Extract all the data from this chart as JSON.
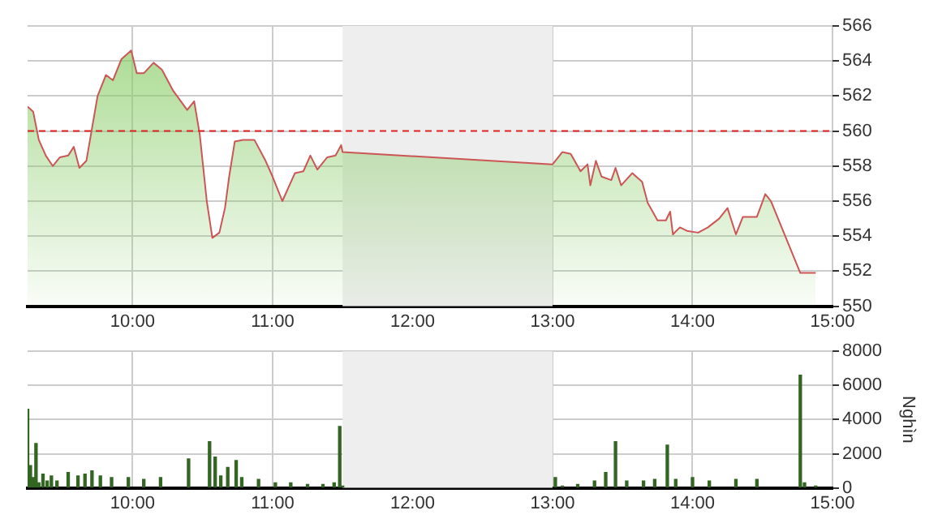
{
  "chart_data": [
    {
      "type": "area",
      "x": [
        9.25,
        9.29,
        9.33,
        9.38,
        9.43,
        9.48,
        9.54,
        9.58,
        9.62,
        9.67,
        9.75,
        9.81,
        9.86,
        9.92,
        9.99,
        10.03,
        10.08,
        10.15,
        10.21,
        10.29,
        10.39,
        10.44,
        10.48,
        10.53,
        10.57,
        10.62,
        10.66,
        10.69,
        10.73,
        10.79,
        10.87,
        10.95,
        11.0,
        11.07,
        11.16,
        11.22,
        11.27,
        11.32,
        11.39,
        11.45,
        11.49,
        11.5,
        13.0,
        13.07,
        13.13,
        13.2,
        13.25,
        13.27,
        13.31,
        13.35,
        13.42,
        13.45,
        13.49,
        13.57,
        13.64,
        13.68,
        13.75,
        13.81,
        13.84,
        13.86,
        13.91,
        13.96,
        14.04,
        14.11,
        14.19,
        14.25,
        14.31,
        14.36,
        14.46,
        14.52,
        14.56,
        14.77,
        14.88
      ],
      "series": [
        {
          "color": "#cc5555",
          "values": [
            561.4,
            561.1,
            559.5,
            558.6,
            558.0,
            558.5,
            558.6,
            559.1,
            557.9,
            558.3,
            562.0,
            563.2,
            562.9,
            564.1,
            564.6,
            563.3,
            563.3,
            563.9,
            563.5,
            562.3,
            561.2,
            561.7,
            559.8,
            556.0,
            553.9,
            554.2,
            555.6,
            557.4,
            559.4,
            559.5,
            559.5,
            558.3,
            557.4,
            556.0,
            557.6,
            557.7,
            558.6,
            557.8,
            558.5,
            558.6,
            559.2,
            558.8,
            558.1,
            558.8,
            558.7,
            557.7,
            558.1,
            556.9,
            558.3,
            557.4,
            557.2,
            557.9,
            556.9,
            557.6,
            557.1,
            555.9,
            554.9,
            554.9,
            555.4,
            554.1,
            554.5,
            554.3,
            554.2,
            554.5,
            555.0,
            555.6,
            554.1,
            555.1,
            555.1,
            556.4,
            556.0,
            551.9,
            551.9
          ]
        }
      ],
      "xlim": [
        9.25,
        15
      ],
      "xticks": [
        {
          "value": 10,
          "label": "10:00"
        },
        {
          "value": 11,
          "label": "11:00"
        },
        {
          "value": 12,
          "label": "12:00"
        },
        {
          "value": 13,
          "label": "13:00"
        },
        {
          "value": 14,
          "label": "14:00"
        },
        {
          "value": 15,
          "label": "15:00"
        }
      ],
      "ylim": [
        550,
        566
      ],
      "yticks": [
        550,
        552,
        554,
        556,
        558,
        560,
        562,
        564,
        566
      ],
      "ref_lines": [
        {
          "axis": "y",
          "value": 560,
          "color": "#dd2222",
          "line_style": "dashed"
        }
      ],
      "bands": [
        {
          "axis": "x",
          "from": 11.5,
          "to": 13,
          "color": "#eeeeee"
        }
      ],
      "grid": true,
      "legend": false
    },
    {
      "type": "bar",
      "ylabel": "Nghìn",
      "x": [
        9.25,
        9.27,
        9.29,
        9.31,
        9.33,
        9.36,
        9.39,
        9.42,
        9.46,
        9.54,
        9.61,
        9.66,
        9.71,
        9.77,
        9.85,
        9.97,
        10.08,
        10.2,
        10.4,
        10.55,
        10.59,
        10.63,
        10.68,
        10.74,
        10.78,
        10.9,
        11.02,
        11.13,
        11.25,
        11.36,
        11.44,
        11.48,
        11.5,
        13.02,
        13.07,
        13.18,
        13.3,
        13.38,
        13.45,
        13.53,
        13.65,
        13.73,
        13.82,
        13.88,
        14.0,
        14.12,
        14.31,
        14.46,
        14.77,
        14.8,
        14.88
      ],
      "series": [
        {
          "color": "#336622",
          "values": [
            4600,
            1300,
            600,
            2600,
            300,
            800,
            400,
            700,
            400,
            900,
            700,
            800,
            1000,
            700,
            600,
            600,
            500,
            600,
            1700,
            2700,
            1800,
            700,
            1200,
            1600,
            600,
            500,
            300,
            300,
            200,
            200,
            300,
            3600,
            100,
            600,
            100,
            200,
            400,
            900,
            2700,
            400,
            400,
            500,
            2500,
            500,
            600,
            400,
            500,
            500,
            6600,
            300,
            100
          ]
        }
      ],
      "xlim": [
        9.25,
        15
      ],
      "xticks": [
        {
          "value": 10,
          "label": "10:00"
        },
        {
          "value": 11,
          "label": "11:00"
        },
        {
          "value": 12,
          "label": "12:00"
        },
        {
          "value": 13,
          "label": "13:00"
        },
        {
          "value": 14,
          "label": "14:00"
        },
        {
          "value": 15,
          "label": "15:00"
        }
      ],
      "ylim": [
        0,
        8000
      ],
      "yticks": [
        0,
        2000,
        4000,
        6000,
        8000
      ],
      "bands": [
        {
          "axis": "x",
          "from": 11.5,
          "to": 13,
          "color": "#eeeeee"
        }
      ],
      "grid": true,
      "legend": false
    }
  ]
}
